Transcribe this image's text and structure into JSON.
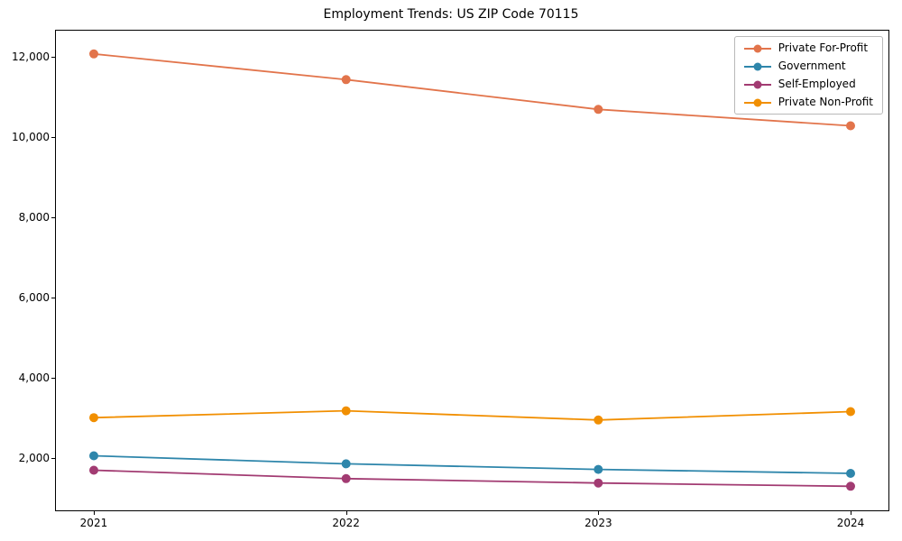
{
  "chart_data": {
    "type": "line",
    "title": "Employment Trends: US ZIP Code 70115",
    "categories": [
      "2021",
      "2022",
      "2023",
      "2024"
    ],
    "series": [
      {
        "name": "Private For-Profit",
        "color": "#e2744b",
        "values": [
          12070,
          11430,
          10690,
          10280
        ]
      },
      {
        "name": "Government",
        "color": "#2e86ab",
        "values": [
          2060,
          1860,
          1720,
          1620
        ]
      },
      {
        "name": "Self-Employed",
        "color": "#a23b72",
        "values": [
          1700,
          1490,
          1380,
          1300
        ]
      },
      {
        "name": "Private Non-Profit",
        "color": "#f18f01",
        "values": [
          3010,
          3180,
          2950,
          3160
        ]
      }
    ],
    "xlabel": "",
    "ylabel": "",
    "y_ticks": {
      "values": [
        2000,
        4000,
        6000,
        8000,
        10000,
        12000
      ],
      "labels": [
        "2,000",
        "4,000",
        "6,000",
        "8,000",
        "10,000",
        "12,000"
      ]
    },
    "xlim": [
      2020.85,
      2024.15
    ],
    "ylim": [
      700,
      12650
    ],
    "grid": false,
    "legend_position": "upper right",
    "marker": "circle",
    "line_width": 1.8,
    "marker_radius": 5
  }
}
